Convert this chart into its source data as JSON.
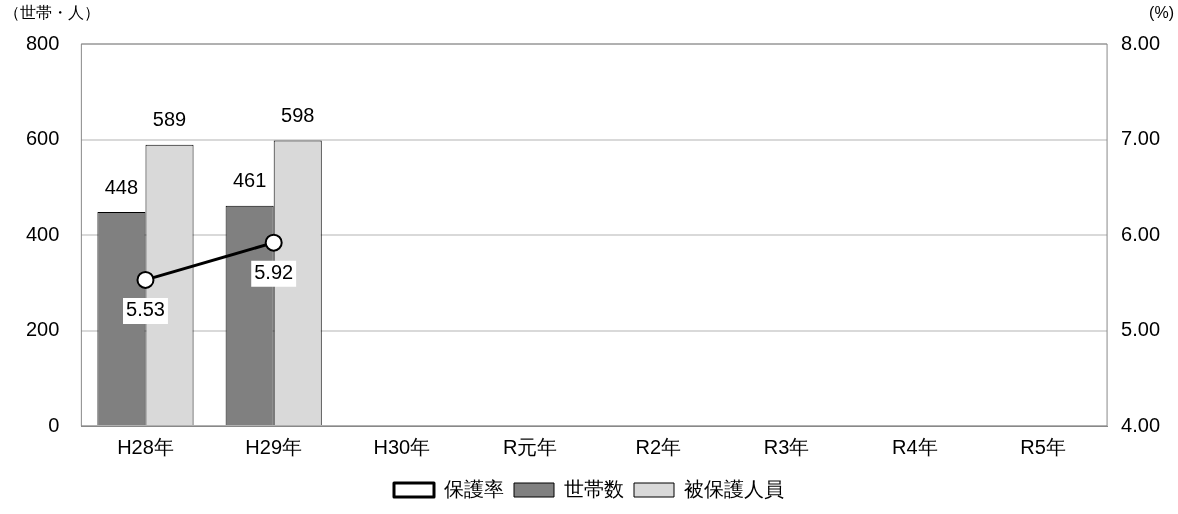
{
  "chart_data": {
    "type": "bar",
    "ylabel": "（世帯・人）",
    "y2label": "(%)",
    "categories": [
      "H28年",
      "H29年",
      "H30年",
      "R元年",
      "R2年",
      "R3年",
      "R4年",
      "R5年"
    ],
    "series": [
      {
        "name": "世帯数",
        "color": "#808080",
        "values": [
          448,
          461,
          null,
          null,
          null,
          null,
          null,
          null
        ]
      },
      {
        "name": "被保護人員",
        "color": "#d9d9d9",
        "values": [
          589,
          598,
          null,
          null,
          null,
          null,
          null,
          null
        ]
      },
      {
        "name": "保護率",
        "type": "line",
        "axis": "y2",
        "color": "#000000",
        "values": [
          5.53,
          5.92,
          null,
          null,
          null,
          null,
          null,
          null
        ]
      }
    ],
    "ylim": [
      0,
      800
    ],
    "yticks": [
      0,
      200,
      400,
      600,
      800
    ],
    "y2lim": [
      4,
      8
    ],
    "y2ticks": [
      {
        "value": 4,
        "label": "4.00"
      },
      {
        "value": 5,
        "label": "5.00"
      },
      {
        "value": 6,
        "label": "6.00"
      },
      {
        "value": 7,
        "label": "7.00"
      },
      {
        "value": 8,
        "label": "8.00"
      }
    ],
    "grid": "y",
    "legend": "bottom",
    "marker": "circle",
    "line_style": "solid",
    "data_labels": true
  }
}
